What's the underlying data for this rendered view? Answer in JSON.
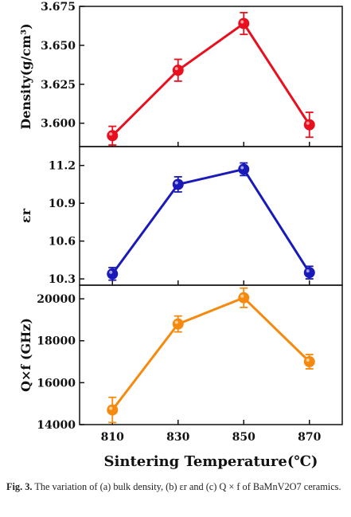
{
  "chart_data": [
    {
      "type": "line",
      "ylabel": "Density(g/cm³)",
      "x": [
        810,
        830,
        850,
        870
      ],
      "series": [
        {
          "values": [
            3.592,
            3.634,
            3.664,
            3.599
          ],
          "errors": [
            0.006,
            0.007,
            0.007,
            0.008
          ],
          "color": "#e8101e"
        }
      ],
      "ylim": [
        3.585,
        3.675
      ],
      "yticks": [
        "3.600",
        "3.625",
        "3.650",
        "3.675"
      ],
      "ytick_values": [
        3.6,
        3.625,
        3.65,
        3.675
      ],
      "grid": false
    },
    {
      "type": "line",
      "ylabel": "εr",
      "x": [
        810,
        830,
        850,
        870
      ],
      "series": [
        {
          "values": [
            10.34,
            11.05,
            11.17,
            10.35
          ],
          "errors": [
            0.05,
            0.06,
            0.05,
            0.05
          ],
          "color": "#1a1ab8"
        }
      ],
      "ylim": [
        10.25,
        11.35
      ],
      "yticks": [
        "10.3",
        "10.6",
        "10.9",
        "11.2"
      ],
      "ytick_values": [
        10.3,
        10.6,
        10.9,
        11.2
      ],
      "grid": false
    },
    {
      "type": "line",
      "ylabel": "Q×f (GHz)",
      "xlabel": "Sintering Temperature(℃)",
      "x": [
        810,
        830,
        850,
        870
      ],
      "series": [
        {
          "values": [
            14700,
            18800,
            20050,
            17000
          ],
          "errors": [
            600,
            380,
            460,
            340
          ],
          "color": "#f58a0f"
        }
      ],
      "ylim": [
        14000,
        20650
      ],
      "yticks": [
        "14000",
        "16000",
        "18000",
        "20000"
      ],
      "ytick_values": [
        14000,
        16000,
        18000,
        20000
      ],
      "xticks": [
        "810",
        "830",
        "850",
        "870"
      ],
      "grid": false
    }
  ],
  "caption": {
    "label": "Fig. 3.",
    "text": "The variation of (a) bulk density, (b) εr and (c) Q × f of BaMnV2O7 ceramics."
  }
}
